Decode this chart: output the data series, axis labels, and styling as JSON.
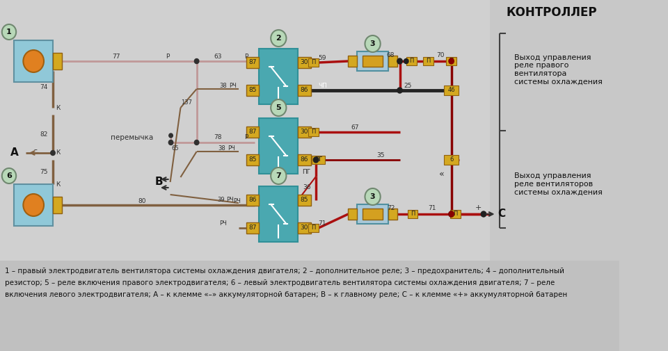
{
  "bg_color": "#c8c8c8",
  "diagram_bg": "#d8d8d8",
  "title": "КОНТРОЛЛЕР",
  "caption_line1": "1 – правый электродвигатель вентилятора системы охлаждения двигателя; 2 – дополнительное реле; 3 – предохранитель; 4 – дополнительный",
  "caption_line2": "резистор; 5 – реле включения правого электродвигателя; 6 – левый электродвигатель вентилятора системы охлаждения двигателя; 7 – реле",
  "caption_line3": "включения левого электродвигателя; А – к клемме «–» аккумуляторной батарен; В – к главному реле; С – к клемме «+» аккумуляторной батарен",
  "right_label1": "Выход управления\nреле правого\nвентилятора\nсистемы охлаждения",
  "right_label2": "Выход управления\nреле вентиляторов\nсистемы охлаждения",
  "colors": {
    "dark_red": "#7B0000",
    "red": "#AA0000",
    "pink": "#C0909090",
    "rose": "#B09090",
    "brown": "#706040",
    "teal": "#4AA8B0",
    "yellow": "#E8C030",
    "light_blue_motor": "#90C8D8",
    "light_blue_fuse": "#A8C8D8",
    "black_wire": "#202020",
    "white": "#FFFFFF",
    "gray": "#888888",
    "dark_gray": "#404040",
    "label_bg": "#d0d0d0",
    "circle_bg": "#c0d8c0",
    "orange": "#E08020",
    "connector_yellow": "#D4A820",
    "text_dark": "#202020",
    "caption_bg": "#c8c8c8"
  }
}
